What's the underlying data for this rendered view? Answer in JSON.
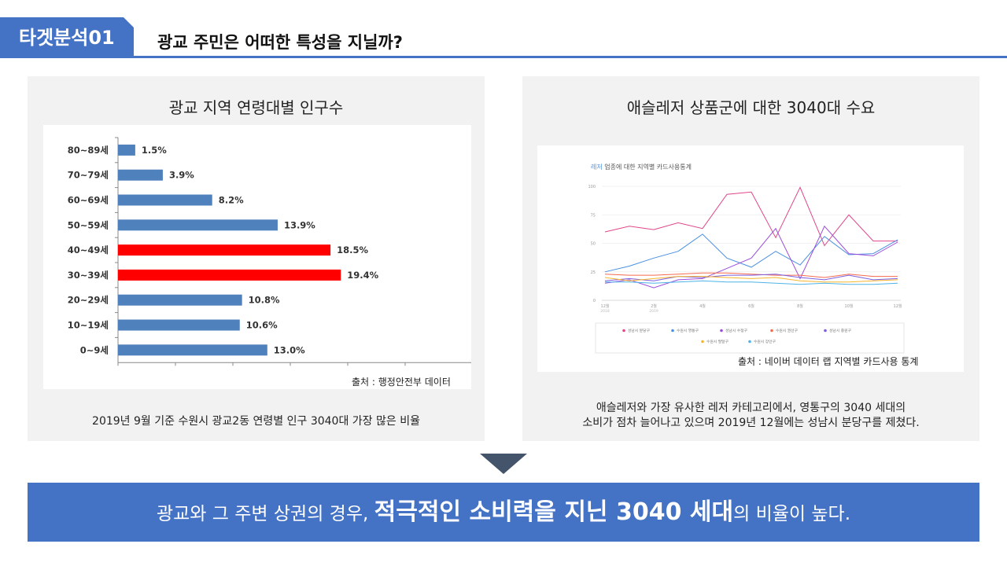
{
  "header": {
    "tag": "타겟분석01",
    "headline": "광교 주민은 어떠한 특성을 지닐까?"
  },
  "left_panel": {
    "title": "광교 지역 연령대별 인구수",
    "source": "출처 : 행정안전부 데이터",
    "caption": "2019년 9월 기준 수원시 광교2동 연령별 인구 3040대 가장 많은 비율"
  },
  "right_panel": {
    "title": "애슬레저 상품군에 대한 3040대 수요",
    "chart_title_accent": "레저",
    "chart_title_rest": " 업종에 대한 지역별 카드사용통계",
    "source": "출처 : 네이버 데이터 랩 지역별 카드사용 통계",
    "caption_line1": "애슬레저와 가장 유사한 레저 카테고리에서, 영통구의 3040 세대의",
    "caption_line2": "소비가 점차 늘어나고 있으며 2019년 12월에는 성남시 분당구를 제쳤다."
  },
  "banner": {
    "prefix": "광교와 그 주변 상권의 경우, ",
    "emphasis": "적극적인 소비력을 지닌 3040 세대",
    "suffix": "의 비율이 높다."
  },
  "colors": {
    "accent": "#4472C4",
    "bar_default": "#4F81BD",
    "bar_highlight": "#FF0000",
    "arrow": "#44546A"
  },
  "chart_data": [
    {
      "type": "bar",
      "orientation": "horizontal",
      "categories": [
        "80~89세",
        "70~79세",
        "60~69세",
        "50~59세",
        "40~49세",
        "30~39세",
        "20~29세",
        "10~19세",
        "0~9세"
      ],
      "values": [
        1.5,
        3.9,
        8.2,
        13.9,
        18.5,
        19.4,
        10.8,
        10.6,
        13.0
      ],
      "data_labels": [
        "1.5%",
        "3.9%",
        "8.2%",
        "13.9%",
        "18.5%",
        "19.4%",
        "10.8%",
        "10.6%",
        "13.0%"
      ],
      "highlight": [
        "40~49세",
        "30~39세"
      ],
      "xlim": [
        0,
        25
      ],
      "title": "",
      "xlabel": "",
      "ylabel": ""
    },
    {
      "type": "line",
      "title": "레저 업종에 대한 지역별 카드사용통계",
      "x": [
        "12월",
        "1월",
        "2월",
        "3월",
        "4월",
        "5월",
        "6월",
        "7월",
        "8월",
        "9월",
        "10월",
        "11월",
        "12월"
      ],
      "x_tick_labels": [
        "12월",
        "2월",
        "4월",
        "6월",
        "8월",
        "10월",
        "12월"
      ],
      "x_year_labels": [
        "2018",
        "2019"
      ],
      "ylim": [
        0,
        100
      ],
      "y_ticks": [
        0,
        25,
        50,
        75,
        100
      ],
      "legend_placement": "bottom",
      "series": [
        {
          "name": "성남시 분당구",
          "color": "#E0458B",
          "values": [
            60,
            65,
            62,
            68,
            63,
            93,
            95,
            55,
            99,
            48,
            75,
            52,
            52
          ]
        },
        {
          "name": "수원시 영통구",
          "color": "#4A90E2",
          "values": [
            25,
            30,
            37,
            43,
            58,
            37,
            29,
            43,
            31,
            56,
            40,
            41,
            53
          ]
        },
        {
          "name": "성남시 수정구",
          "color": "#9B4DDB",
          "values": [
            15,
            18,
            11,
            18,
            19,
            28,
            37,
            63,
            19,
            65,
            41,
            39,
            51
          ]
        },
        {
          "name": "수원시 권선구",
          "color": "#F56A4F",
          "values": [
            23,
            22,
            22,
            23,
            24,
            24,
            23,
            22,
            22,
            20,
            23,
            21,
            21
          ]
        },
        {
          "name": "성남시 중원구",
          "color": "#7B5FE0",
          "values": [
            17,
            19,
            17,
            21,
            20,
            22,
            22,
            23,
            20,
            18,
            22,
            18,
            19
          ]
        },
        {
          "name": "수원시 팔달구",
          "color": "#F5B52C",
          "values": [
            20,
            17,
            19,
            21,
            21,
            20,
            19,
            20,
            17,
            16,
            16,
            17,
            18
          ]
        },
        {
          "name": "수원시 장안구",
          "color": "#4DB3E6",
          "values": [
            16,
            16,
            15,
            16,
            17,
            16,
            16,
            15,
            14,
            15,
            14,
            14,
            15
          ]
        }
      ]
    }
  ]
}
